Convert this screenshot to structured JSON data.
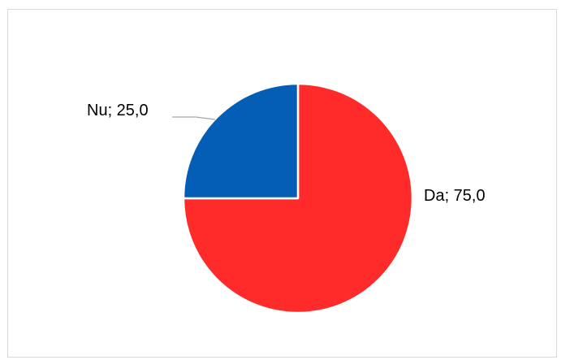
{
  "chart_data": {
    "type": "pie",
    "categories": [
      "Da",
      "Nu"
    ],
    "values": [
      75.0,
      25.0
    ],
    "data_labels": [
      "Da; 75,0",
      "Nu; 25,0"
    ],
    "colors": [
      "#ff2a2a",
      "#055eb6"
    ],
    "start_angle_deg": 0,
    "direction": "clockwise",
    "title": "",
    "legend": "none"
  }
}
